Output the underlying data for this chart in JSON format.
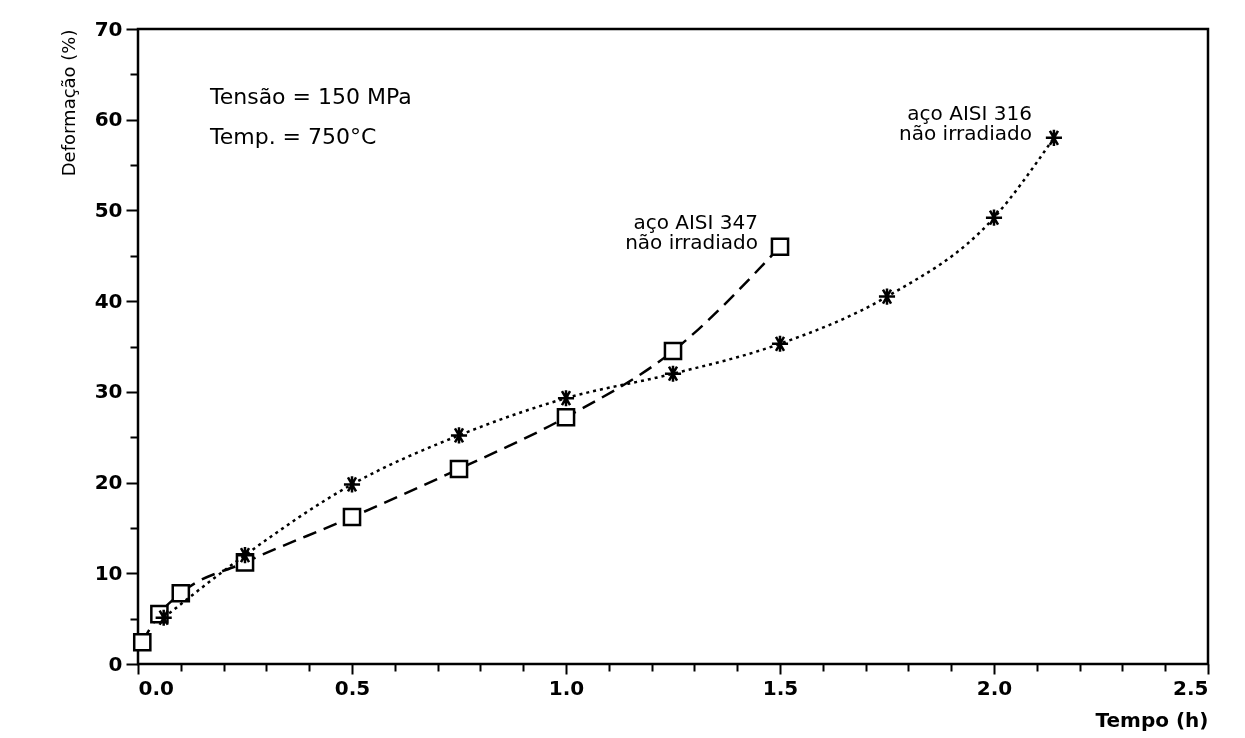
{
  "chart_data": {
    "type": "line",
    "xlabel": "Tempo (h)",
    "ylabel": "Deformação (%)",
    "xlim": [
      0,
      2.5
    ],
    "ylim": [
      0,
      70
    ],
    "xticks": [
      {
        "value": 0,
        "label": "0.0"
      },
      {
        "value": 0.1,
        "label": null
      },
      {
        "value": 0.2,
        "label": null
      },
      {
        "value": 0.3,
        "label": null
      },
      {
        "value": 0.4,
        "label": null
      },
      {
        "value": 0.5,
        "label": "0.5"
      },
      {
        "value": 0.6,
        "label": null
      },
      {
        "value": 0.7,
        "label": null
      },
      {
        "value": 0.8,
        "label": null
      },
      {
        "value": 0.9,
        "label": null
      },
      {
        "value": 1,
        "label": "1.0"
      },
      {
        "value": 1.1,
        "label": null
      },
      {
        "value": 1.2,
        "label": null
      },
      {
        "value": 1.3,
        "label": null
      },
      {
        "value": 1.4,
        "label": null
      },
      {
        "value": 1.5,
        "label": "1.5"
      },
      {
        "value": 1.6,
        "label": null
      },
      {
        "value": 1.7,
        "label": null
      },
      {
        "value": 1.8,
        "label": null
      },
      {
        "value": 1.9,
        "label": null
      },
      {
        "value": 2,
        "label": "2.0"
      },
      {
        "value": 2.1,
        "label": null
      },
      {
        "value": 2.2,
        "label": null
      },
      {
        "value": 2.3,
        "label": null
      },
      {
        "value": 2.4,
        "label": null
      },
      {
        "value": 2.5,
        "label": "2.5"
      }
    ],
    "yticks": [
      0,
      {
        "value": 5,
        "label": null
      },
      10,
      {
        "value": 15,
        "label": null
      },
      20,
      {
        "value": 25,
        "label": null
      },
      30,
      {
        "value": 35,
        "label": null
      },
      40,
      {
        "value": 45,
        "label": null
      },
      50,
      {
        "value": 55,
        "label": null
      },
      60,
      {
        "value": 65,
        "label": null
      },
      70
    ],
    "grid": false,
    "annotations": [
      "Tensão = 150 MPa",
      "Temp. = 750°C"
    ],
    "series": [
      {
        "name": "aço AISI 347\nnão irradiado",
        "color": "#000000",
        "marker": "square",
        "line_style": "dashed",
        "x": [
          0.01,
          0.05,
          0.1,
          0.25,
          0.5,
          0.75,
          1.0,
          1.25,
          1.5
        ],
        "values": [
          2.4,
          5.5,
          7.8,
          11.2,
          16.2,
          21.5,
          27.2,
          34.5,
          46
        ]
      },
      {
        "name": "aço AISI 316\nnão irradiado",
        "color": "#000000",
        "marker": "cross",
        "line_style": "dotted",
        "x": [
          0.06,
          0.25,
          0.5,
          0.75,
          1.0,
          1.25,
          1.5,
          1.75,
          2.0,
          2.14
        ],
        "values": [
          5.1,
          12,
          19.8,
          25.2,
          29.3,
          32,
          35.3,
          40.5,
          49.2,
          58
        ]
      }
    ]
  }
}
